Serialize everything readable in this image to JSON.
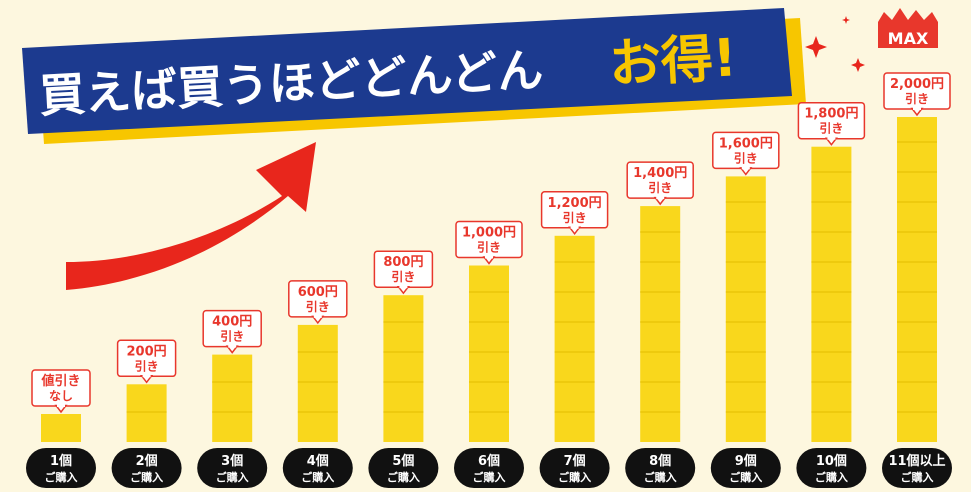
{
  "banner": {
    "main_text": "買えば買うほどどんどん",
    "accent_text": "お得!",
    "max_badge": "MAX"
  },
  "colors": {
    "background": "#fdf7df",
    "bar": "#f9d71c",
    "bar_line": "#e2bd00",
    "banner_bg": "#1c3a8f",
    "banner_text": "#ffffff",
    "accent": "#f7c600",
    "label_border": "#e8372c",
    "label_text": "#e8372c",
    "arrow": "#e8261c",
    "pill": "#111111",
    "pill_text": "#ffffff"
  },
  "chart_data": {
    "type": "bar",
    "title": "買えば買うほどどんどんお得!",
    "categories": [
      {
        "count": "1個",
        "action": "ご購入"
      },
      {
        "count": "2個",
        "action": "ご購入"
      },
      {
        "count": "3個",
        "action": "ご購入"
      },
      {
        "count": "4個",
        "action": "ご購入"
      },
      {
        "count": "5個",
        "action": "ご購入"
      },
      {
        "count": "6個",
        "action": "ご購入"
      },
      {
        "count": "7個",
        "action": "ご購入"
      },
      {
        "count": "8個",
        "action": "ご購入"
      },
      {
        "count": "9個",
        "action": "ご購入"
      },
      {
        "count": "10個",
        "action": "ご購入"
      },
      {
        "count": "11個以上",
        "action": "ご購入"
      }
    ],
    "values": [
      0,
      200,
      400,
      600,
      800,
      1000,
      1200,
      1400,
      1600,
      1800,
      2000
    ],
    "unit": "円引き",
    "labels": [
      {
        "line1": "値引き",
        "line2": "なし"
      },
      {
        "line1": "200円",
        "line2": "引き"
      },
      {
        "line1": "400円",
        "line2": "引き"
      },
      {
        "line1": "600円",
        "line2": "引き"
      },
      {
        "line1": "800円",
        "line2": "引き"
      },
      {
        "line1": "1,000円",
        "line2": "引き"
      },
      {
        "line1": "1,200円",
        "line2": "引き"
      },
      {
        "line1": "1,400円",
        "line2": "引き"
      },
      {
        "line1": "1,600円",
        "line2": "引き"
      },
      {
        "line1": "1,800円",
        "line2": "引き"
      },
      {
        "line1": "2,000円",
        "line2": "引き"
      }
    ],
    "ylim": [
      0,
      2000
    ]
  }
}
